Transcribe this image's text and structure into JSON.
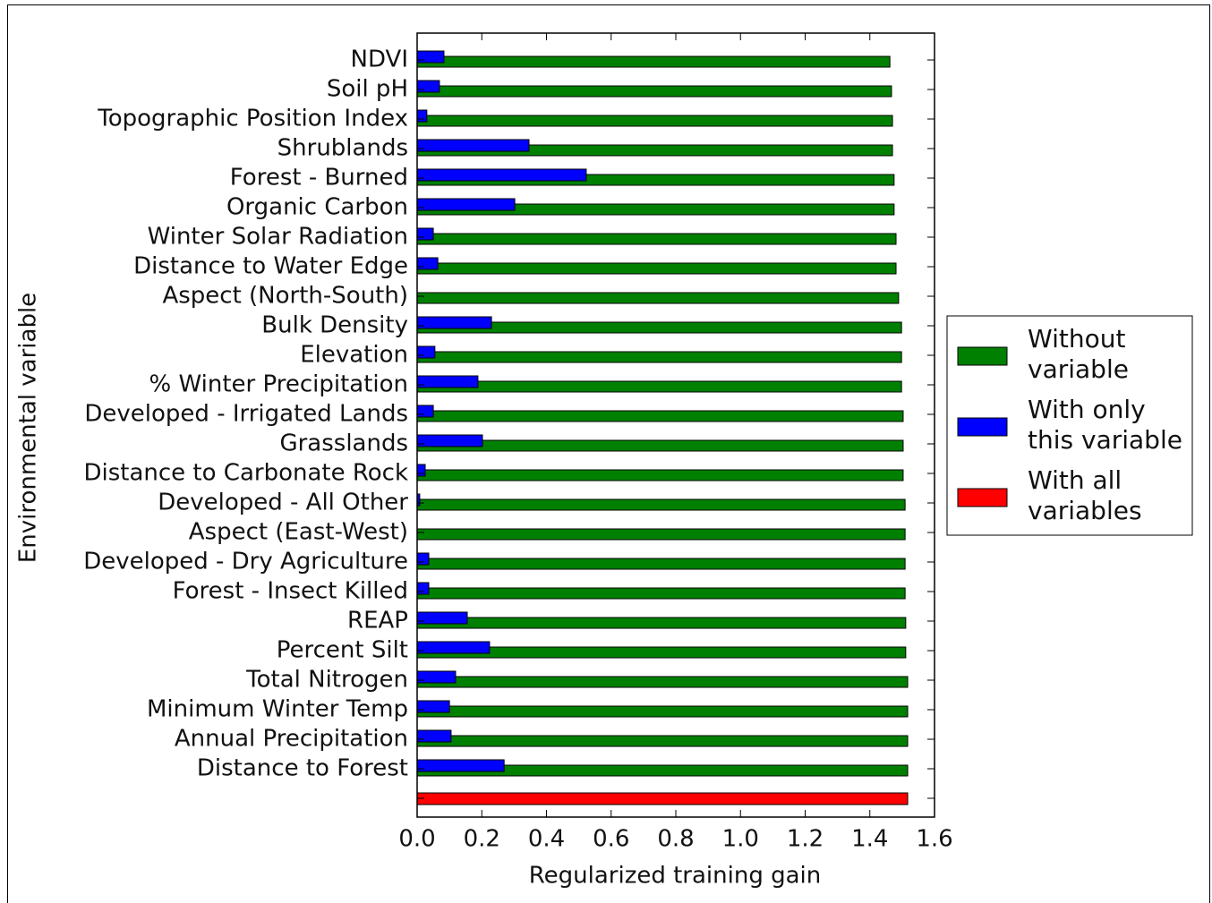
{
  "chart_data": {
    "type": "barh",
    "xlabel": "Regularized training gain",
    "ylabel": "Environmental variable",
    "categories": [
      "NDVI",
      "Soil pH",
      "Topographic Position Index",
      "Shrublands",
      "Forest - Burned",
      "Organic Carbon",
      "Winter Solar Radiation",
      "Distance to Water Edge",
      "Aspect (North-South)",
      "Bulk Density",
      "Elevation",
      "% Winter Precipitation",
      "Developed - Irrigated Lands",
      "Grasslands",
      "Distance to Carbonate Rock",
      "Developed - All Other",
      "Aspect (East-West)",
      "Developed - Dry Agriculture",
      "Forest - Insect Killed",
      "REAP",
      "Percent Silt",
      "Total Nitrogen",
      "Minimum Winter Temp",
      "Annual Precipitation",
      "Distance to Forest",
      null
    ],
    "series": [
      {
        "name": "Without\nvariable",
        "color": "#008000",
        "values": [
          1.462,
          1.467,
          1.47,
          1.47,
          1.475,
          1.475,
          1.481,
          1.481,
          1.489,
          1.498,
          1.498,
          1.498,
          1.503,
          1.503,
          1.503,
          1.509,
          1.509,
          1.509,
          1.509,
          1.511,
          1.511,
          1.517,
          1.517,
          1.517,
          1.517,
          null
        ]
      },
      {
        "name": "With only\nthis variable",
        "color": "#0000ff",
        "values": [
          0.083,
          0.069,
          0.03,
          0.346,
          0.523,
          0.302,
          0.05,
          0.064,
          0,
          0.23,
          0.055,
          0.188,
          0.05,
          0.202,
          0.025,
          0.008,
          0,
          0.036,
          0.036,
          0.155,
          0.224,
          0.119,
          0.1,
          0.105,
          0.269,
          null
        ]
      },
      {
        "name": "With all\nvariables",
        "color": "#ff0000",
        "values": [
          null,
          null,
          null,
          null,
          null,
          null,
          null,
          null,
          null,
          null,
          null,
          null,
          null,
          null,
          null,
          null,
          null,
          null,
          null,
          null,
          null,
          null,
          null,
          null,
          null,
          1.517
        ]
      }
    ],
    "xlim": [
      0,
      1.6
    ],
    "xticks": [
      {
        "value": 0,
        "label": "0.0"
      },
      0.2,
      0.4,
      0.6,
      0.8,
      {
        "value": 1,
        "label": "1.0"
      },
      1.2,
      1.4,
      1.6
    ],
    "legend": "right"
  }
}
